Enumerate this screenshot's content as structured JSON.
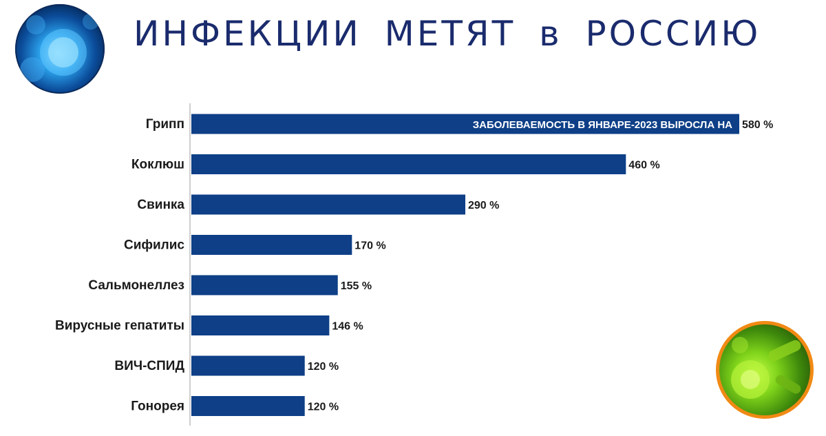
{
  "title": "ИНФЕКЦИИ  МЕТЯТ  в  РОССИЮ",
  "icons": {
    "logo": "virus-cells-icon",
    "decoration": "bacteria-icon"
  },
  "colors": {
    "bar": "#0e3f87",
    "title": "#1a2b6d",
    "accent_ring": "#f08a14"
  },
  "chart_data": {
    "type": "bar",
    "orientation": "horizontal",
    "annotation": "ЗАБОЛЕВАЕМОСТЬ  В ЯНВАРЕ-2023  ВЫРОСЛА НА",
    "categories": [
      "Грипп",
      "Коклюш",
      "Свинка",
      "Сифилис",
      "Сальмонеллез",
      "Вирусные гепатиты",
      "ВИЧ-СПИД",
      "Гонорея"
    ],
    "values": [
      580,
      460,
      290,
      170,
      155,
      146,
      120,
      120
    ],
    "data_labels": [
      "580 %",
      "460  %",
      "290  %",
      "170  %",
      "155  %",
      "146  %",
      "120  %",
      "120  %"
    ],
    "xlim": [
      0,
      580
    ],
    "grid": false
  }
}
